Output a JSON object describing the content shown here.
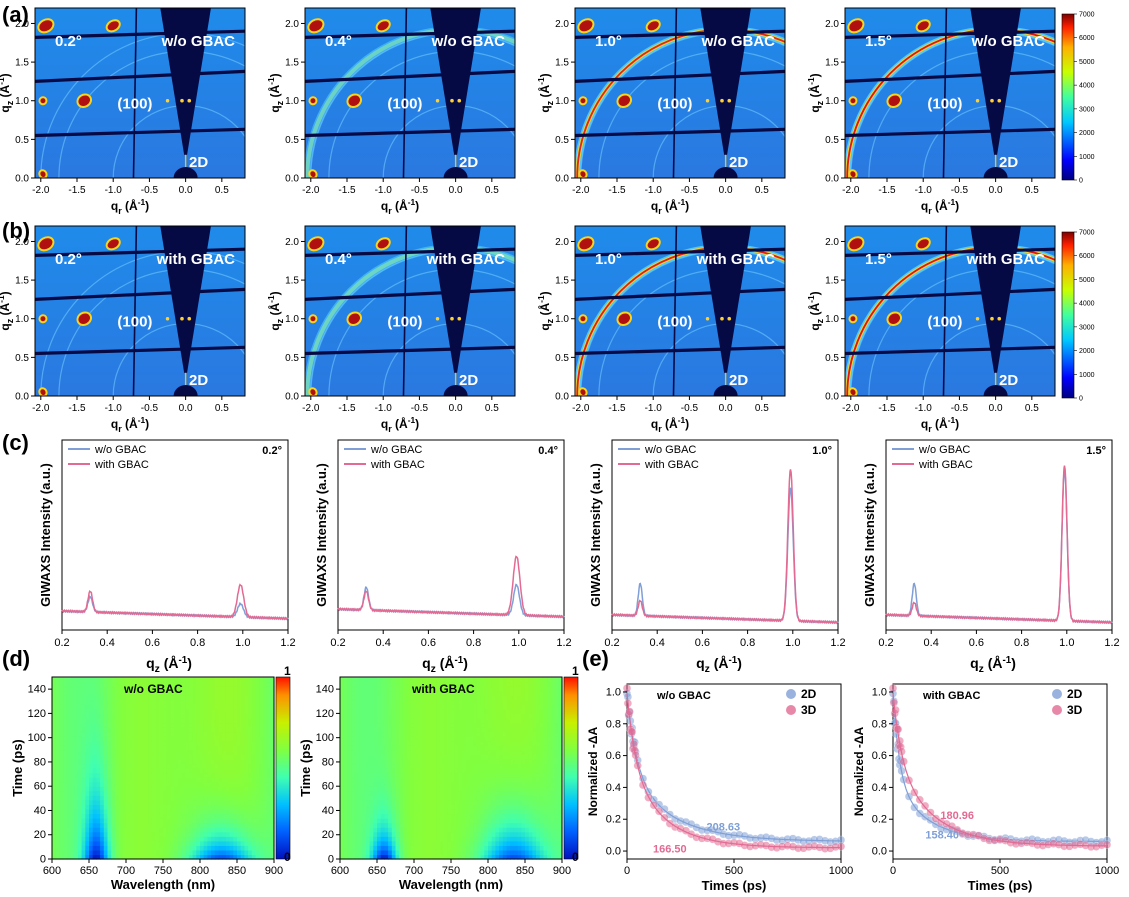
{
  "panel_labels": [
    "(a)",
    "(b)",
    "(c)",
    "(d)",
    "(e)"
  ],
  "colors": {
    "wo_series": "#7f9fd6",
    "with_series": "#e26a93",
    "giwaxs_background": "#1f8bea",
    "beam_stop": "#050a45",
    "ring_hot": "#e01515",
    "ring_warm": "#f6d520"
  },
  "giwaxs": {
    "x_axis_label": "q_r (Å^-1)",
    "y_axis_label": "q_z (Å^-1)",
    "x_ticks": [
      "-2.0",
      "-1.5",
      "-1.0",
      "-0.5",
      "0.0",
      "0.5"
    ],
    "y_ticks": [
      "0.0",
      "0.5",
      "1.0",
      "1.5",
      "2.0"
    ],
    "xlim": [
      -2.08,
      0.82
    ],
    "ylim": [
      0,
      2.2
    ],
    "peak_label": "(100)",
    "phase_label": "2D",
    "colorbar_ticks": [
      "0",
      "1000",
      "2000",
      "3000",
      "4000",
      "5000",
      "6000",
      "7000"
    ],
    "colorbar_range": [
      0,
      7000
    ],
    "rows": [
      {
        "row": "a",
        "condition": "w/o GBAC",
        "panels": [
          {
            "angle": "0.2°",
            "ring_intensity": 0.0
          },
          {
            "angle": "0.4°",
            "ring_intensity": 0.3
          },
          {
            "angle": "1.0°",
            "ring_intensity": 0.9
          },
          {
            "angle": "1.5°",
            "ring_intensity": 1.0
          }
        ]
      },
      {
        "row": "b",
        "condition": "with GBAC",
        "panels": [
          {
            "angle": "0.2°",
            "ring_intensity": 0.0
          },
          {
            "angle": "0.4°",
            "ring_intensity": 0.35
          },
          {
            "angle": "1.0°",
            "ring_intensity": 0.95
          },
          {
            "angle": "1.5°",
            "ring_intensity": 1.0
          }
        ]
      }
    ]
  },
  "chart_data": [
    {
      "type": "line",
      "panel": "c",
      "angle": "0.2°",
      "xlabel": "q_z (Å^-1)",
      "ylabel": "GIWAXS Intensity (a.u.)",
      "xlim": [
        0.2,
        1.2
      ],
      "x_ticks": [
        "0.2",
        "0.4",
        "0.6",
        "0.8",
        "1.0",
        "1.2"
      ],
      "legend": "top-left",
      "series": [
        {
          "name": "w/o GBAC",
          "color": "#7f9fd6",
          "baseline": 0.1,
          "peaks": [
            {
              "q": 0.325,
              "h": 0.08,
              "w": 0.01
            },
            {
              "q": 0.99,
              "h": 0.07,
              "w": 0.013
            }
          ]
        },
        {
          "name": "with GBAC",
          "color": "#e26a93",
          "baseline": 0.1,
          "peaks": [
            {
              "q": 0.325,
              "h": 0.11,
              "w": 0.01
            },
            {
              "q": 0.99,
              "h": 0.17,
              "w": 0.014
            }
          ]
        }
      ]
    },
    {
      "type": "line",
      "panel": "c",
      "angle": "0.4°",
      "xlabel": "q_z (Å^-1)",
      "ylabel": "GIWAXS Intensity (a.u.)",
      "xlim": [
        0.2,
        1.2
      ],
      "x_ticks": [
        "0.2",
        "0.4",
        "0.6",
        "0.8",
        "1.0",
        "1.2"
      ],
      "legend": "top-left",
      "series": [
        {
          "name": "w/o GBAC",
          "color": "#7f9fd6",
          "baseline": 0.11,
          "peaks": [
            {
              "q": 0.325,
              "h": 0.12,
              "w": 0.01
            },
            {
              "q": 0.99,
              "h": 0.16,
              "w": 0.013
            }
          ]
        },
        {
          "name": "with GBAC",
          "color": "#e26a93",
          "baseline": 0.11,
          "peaks": [
            {
              "q": 0.325,
              "h": 0.1,
              "w": 0.01
            },
            {
              "q": 0.99,
              "h": 0.31,
              "w": 0.015
            }
          ]
        }
      ]
    },
    {
      "type": "line",
      "panel": "c",
      "angle": "1.0°",
      "xlabel": "q_z (Å^-1)",
      "ylabel": "GIWAXS Intensity (a.u.)",
      "xlim": [
        0.2,
        1.2
      ],
      "x_ticks": [
        "0.2",
        "0.4",
        "0.6",
        "0.8",
        "1.0",
        "1.2"
      ],
      "legend": "top-left",
      "series": [
        {
          "name": "w/o GBAC",
          "color": "#7f9fd6",
          "baseline": 0.08,
          "peaks": [
            {
              "q": 0.325,
              "h": 0.17,
              "w": 0.009
            },
            {
              "q": 0.99,
              "h": 0.7,
              "w": 0.012
            }
          ]
        },
        {
          "name": "with GBAC",
          "color": "#e26a93",
          "baseline": 0.08,
          "peaks": [
            {
              "q": 0.325,
              "h": 0.08,
              "w": 0.009
            },
            {
              "q": 0.99,
              "h": 0.8,
              "w": 0.012
            }
          ]
        }
      ]
    },
    {
      "type": "line",
      "panel": "c",
      "angle": "1.5°",
      "xlabel": "q_z (Å^-1)",
      "ylabel": "GIWAXS Intensity (a.u.)",
      "xlim": [
        0.2,
        1.2
      ],
      "x_ticks": [
        "0.2",
        "0.4",
        "0.6",
        "0.8",
        "1.0",
        "1.2"
      ],
      "legend": "top-left",
      "series": [
        {
          "name": "w/o GBAC",
          "color": "#7f9fd6",
          "baseline": 0.08,
          "peaks": [
            {
              "q": 0.325,
              "h": 0.17,
              "w": 0.009
            },
            {
              "q": 0.99,
              "h": 0.8,
              "w": 0.011
            }
          ]
        },
        {
          "name": "with GBAC",
          "color": "#e26a93",
          "baseline": 0.08,
          "peaks": [
            {
              "q": 0.325,
              "h": 0.07,
              "w": 0.009
            },
            {
              "q": 0.99,
              "h": 0.82,
              "w": 0.011
            }
          ]
        }
      ]
    },
    {
      "type": "heatmap",
      "panel": "d",
      "title": "w/o GBAC",
      "xlabel": "Wavelength (nm)",
      "ylabel": "Time (ps)",
      "xlim": [
        600,
        900
      ],
      "ylim": [
        0,
        150
      ],
      "x_ticks": [
        "600",
        "650",
        "700",
        "750",
        "800",
        "850",
        "900"
      ],
      "y_ticks": [
        "0",
        "20",
        "40",
        "60",
        "80",
        "100",
        "120",
        "140"
      ],
      "colorbar_ticks": [
        "0",
        "1"
      ],
      "bleach_features": [
        {
          "center_nm": 660,
          "width_nm": 12,
          "tau_ps": 45
        },
        {
          "center_nm": 830,
          "width_nm": 30,
          "tau_ps": 22
        }
      ]
    },
    {
      "type": "heatmap",
      "panel": "d",
      "title": "with GBAC",
      "xlabel": "Wavelength (nm)",
      "ylabel": "Time (ps)",
      "xlim": [
        600,
        900
      ],
      "ylim": [
        0,
        150
      ],
      "x_ticks": [
        "600",
        "650",
        "700",
        "750",
        "800",
        "850",
        "900"
      ],
      "y_ticks": [
        "0",
        "20",
        "40",
        "60",
        "80",
        "100",
        "120",
        "140"
      ],
      "colorbar_ticks": [
        "0",
        "1"
      ],
      "bleach_features": [
        {
          "center_nm": 660,
          "width_nm": 12,
          "tau_ps": 22
        },
        {
          "center_nm": 835,
          "width_nm": 30,
          "tau_ps": 30
        }
      ]
    },
    {
      "type": "scatter",
      "panel": "e",
      "title": "w/o GBAC",
      "xlabel": "Times (ps)",
      "ylabel": "Normalized -ΔA",
      "xlim": [
        0,
        1000
      ],
      "ylim": [
        -0.05,
        1.05
      ],
      "x_ticks": [
        "0",
        "500",
        "1000"
      ],
      "y_ticks": [
        "0.0",
        "0.2",
        "0.4",
        "0.6",
        "0.8",
        "1.0"
      ],
      "legend": "top-right",
      "series": [
        {
          "name": "2D",
          "color": "#7f9fd6",
          "lifetime_ps": "208.63",
          "fit": {
            "a1": 0.5,
            "t1": 45,
            "a2": 0.43,
            "t2": 208.63,
            "offset": 0.06
          }
        },
        {
          "name": "3D",
          "color": "#e26a93",
          "lifetime_ps": "166.50",
          "fit": {
            "a1": 0.45,
            "t1": 40,
            "a2": 0.52,
            "t2": 166.5,
            "offset": 0.02
          }
        }
      ]
    },
    {
      "type": "scatter",
      "panel": "e",
      "title": "with GBAC",
      "xlabel": "Times (ps)",
      "ylabel": "Normalized -ΔA",
      "xlim": [
        0,
        1000
      ],
      "ylim": [
        -0.05,
        1.05
      ],
      "x_ticks": [
        "0",
        "500",
        "1000"
      ],
      "y_ticks": [
        "0.0",
        "0.2",
        "0.4",
        "0.6",
        "0.8",
        "1.0"
      ],
      "legend": "top-right",
      "series": [
        {
          "name": "2D",
          "color": "#7f9fd6",
          "lifetime_ps": "158.40",
          "fit": {
            "a1": 0.55,
            "t1": 30,
            "a2": 0.38,
            "t2": 158.4,
            "offset": 0.06
          }
        },
        {
          "name": "3D",
          "color": "#e26a93",
          "lifetime_ps": "180.96",
          "fit": {
            "a1": 0.42,
            "t1": 40,
            "a2": 0.54,
            "t2": 180.96,
            "offset": 0.03
          }
        }
      ]
    }
  ]
}
